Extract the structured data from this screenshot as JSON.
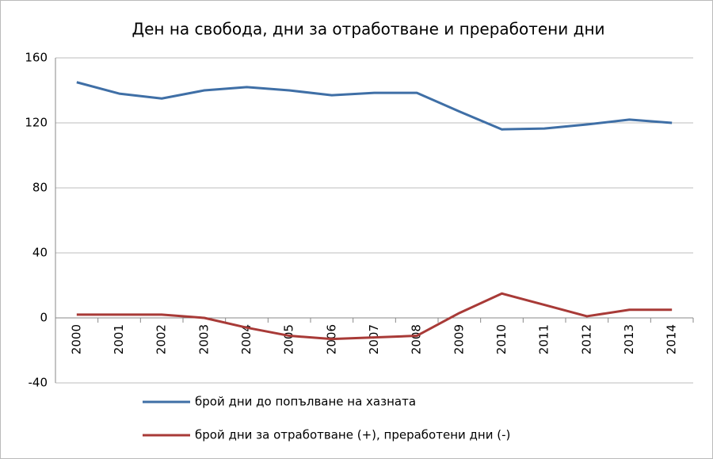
{
  "chart_data": {
    "type": "line",
    "title": "Ден на свобода, дни за отработване и преработени дни",
    "categories": [
      "2000",
      "2001",
      "2002",
      "2003",
      "2004",
      "2005",
      "2006",
      "2007",
      "2008",
      "2009",
      "2010",
      "2011",
      "2012",
      "2013",
      "2014"
    ],
    "series": [
      {
        "name": "брой дни до попълване на хазната",
        "color": "#3f6fa6",
        "values": [
          145,
          138,
          135,
          140,
          142,
          140,
          137,
          138.5,
          138.5,
          127,
          116,
          116.5,
          119,
          122,
          120
        ]
      },
      {
        "name": "брой дни за отработване (+), преработени дни (-)",
        "color": "#a83a37",
        "values": [
          2,
          2,
          2,
          0,
          -6,
          -11,
          -13,
          -12,
          -11,
          3,
          15,
          8,
          1,
          5,
          5
        ]
      }
    ],
    "ylim": [
      -40,
      160
    ],
    "yticks": [
      -40,
      0,
      40,
      80,
      120,
      160
    ],
    "grid": true,
    "legend": "bottom"
  }
}
